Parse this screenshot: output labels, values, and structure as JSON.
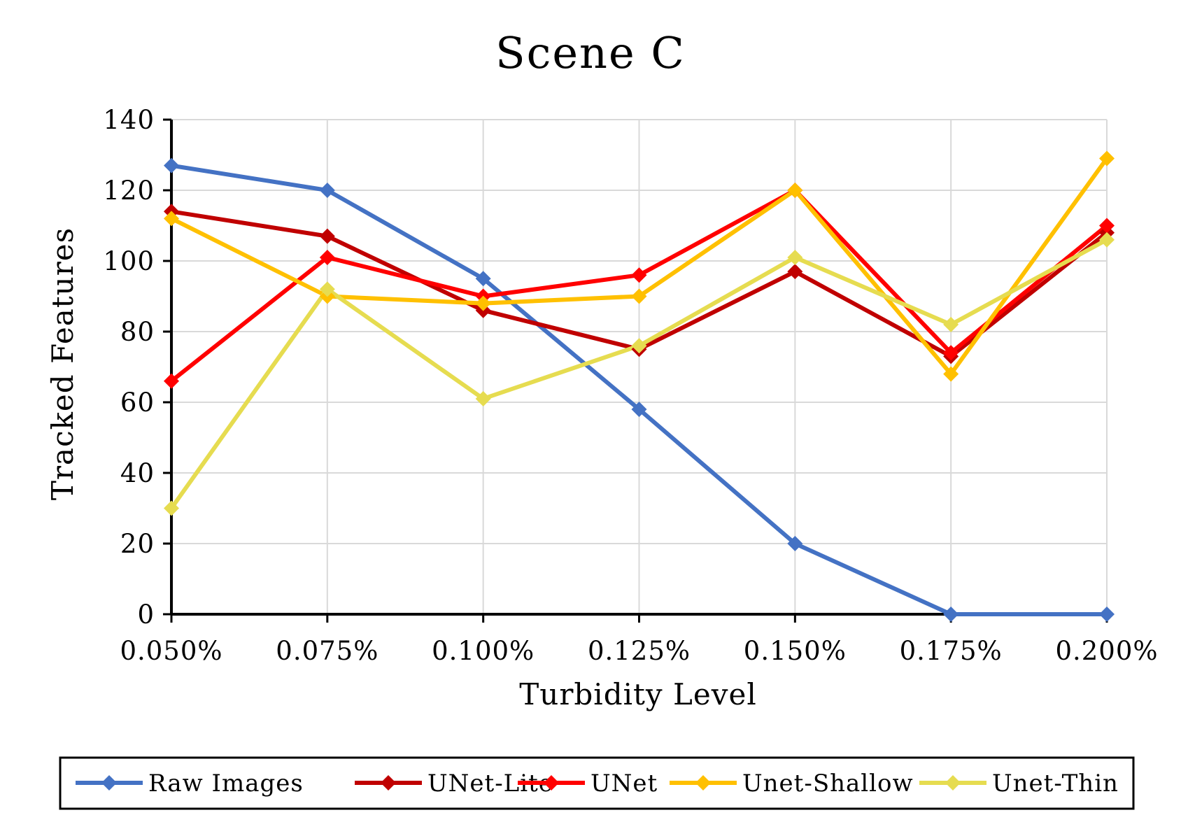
{
  "chart_data": {
    "type": "line",
    "title": "Scene C",
    "xlabel": "Turbidity Level",
    "ylabel": "Tracked Features",
    "categories": [
      "0.050%",
      "0.075%",
      "0.100%",
      "0.125%",
      "0.150%",
      "0.175%",
      "0.200%"
    ],
    "ylim": [
      0,
      140
    ],
    "yticks": [
      0,
      20,
      40,
      60,
      80,
      100,
      120,
      140
    ],
    "grid": true,
    "legend_position": "bottom",
    "marker": "diamond",
    "series": [
      {
        "name": "Raw Images",
        "color": "#4472C4",
        "values": [
          127,
          120,
          95,
          58,
          20,
          0,
          0
        ]
      },
      {
        "name": "UNet-Lite",
        "color": "#C00000",
        "values": [
          114,
          107,
          86,
          75,
          97,
          73,
          108
        ]
      },
      {
        "name": "UNet",
        "color": "#FF0000",
        "values": [
          66,
          101,
          90,
          96,
          120,
          74,
          110
        ]
      },
      {
        "name": "Unet-Shallow",
        "color": "#FFC000",
        "values": [
          112,
          90,
          88,
          90,
          120,
          68,
          129
        ]
      },
      {
        "name": "Unet-Thin",
        "color": "#E6DC50",
        "values": [
          30,
          92,
          61,
          76,
          101,
          82,
          106
        ]
      }
    ]
  }
}
